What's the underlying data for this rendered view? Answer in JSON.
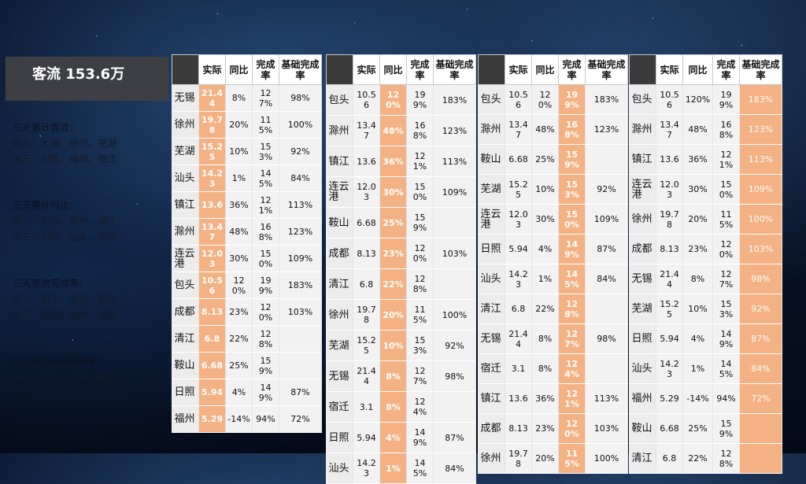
{
  "title": "客流 153.6万",
  "side": [
    {
      "heading": "三天累计客流：",
      "lines": [
        "前三：无锡、徐州、芜湖",
        "末三：日照、福州、宿迁"
      ]
    },
    {
      "heading": "三天累计同比：",
      "lines": [
        "前三：包头、滁州、镇江",
        "末三：日照、汕头、福州"
      ]
    },
    {
      "heading": "三天客流完成率：",
      "lines": [
        "前三：包头、滁州、鞍山",
        "末三：成都、徐州、福州"
      ]
    },
    {
      "heading": "三天客流基础完成率：",
      "lines": [
        "前三：包头、滁州、镇江"
      ]
    }
  ],
  "headers": [
    "实际",
    "同比",
    "完成率",
    "基础完成率"
  ],
  "tables": [
    {
      "rows": [
        [
          "无锡",
          "21.44",
          "8%",
          "127%",
          "98%"
        ],
        [
          "徐州",
          "19.78",
          "20%",
          "115%",
          "100%"
        ],
        [
          "芜湖",
          "15.25",
          "10%",
          "153%",
          "92%"
        ],
        [
          "汕头",
          "14.23",
          "1%",
          "145%",
          "84%"
        ],
        [
          "镇江",
          "13.6",
          "36%",
          "121%",
          "113%"
        ],
        [
          "滁州",
          "13.47",
          "48%",
          "168%",
          "123%"
        ],
        [
          "连云港",
          "12.03",
          "30%",
          "150%",
          "109%"
        ],
        [
          "包头",
          "10.56",
          "120%",
          "199%",
          "183%"
        ],
        [
          "成都",
          "8.13",
          "23%",
          "120%",
          "103%"
        ],
        [
          "清江",
          "6.8",
          "22%",
          "128%",
          ""
        ],
        [
          "鞍山",
          "6.68",
          "25%",
          "159%",
          ""
        ],
        [
          "日照",
          "5.94",
          "4%",
          "149%",
          "87%"
        ],
        [
          "福州",
          "5.29",
          "-14%",
          "94%",
          "72%"
        ]
      ]
    },
    {
      "rows": [
        [
          "包头",
          "10.56",
          "120%",
          "199%",
          "183%"
        ],
        [
          "滁州",
          "13.47",
          "48%",
          "168%",
          "123%"
        ],
        [
          "镇江",
          "13.6",
          "36%",
          "121%",
          "113%"
        ],
        [
          "连云港",
          "12.03",
          "30%",
          "150%",
          "109%"
        ],
        [
          "鞍山",
          "6.68",
          "25%",
          "159%",
          ""
        ],
        [
          "成都",
          "8.13",
          "23%",
          "120%",
          "103%"
        ],
        [
          "清江",
          "6.8",
          "22%",
          "128%",
          ""
        ],
        [
          "徐州",
          "19.78",
          "20%",
          "115%",
          "100%"
        ],
        [
          "芜湖",
          "15.25",
          "10%",
          "153%",
          "92%"
        ],
        [
          "无锡",
          "21.44",
          "8%",
          "127%",
          "98%"
        ],
        [
          "宿迁",
          "3.1",
          "8%",
          "124%",
          ""
        ],
        [
          "日照",
          "5.94",
          "4%",
          "149%",
          "87%"
        ],
        [
          "汕头",
          "14.23",
          "1%",
          "145%",
          "84%"
        ]
      ]
    },
    {
      "rows": [
        [
          "包头",
          "10.56",
          "120%",
          "199%",
          "183%"
        ],
        [
          "滁州",
          "13.47",
          "48%",
          "168%",
          "123%"
        ],
        [
          "鞍山",
          "6.68",
          "25%",
          "159%",
          ""
        ],
        [
          "芜湖",
          "15.25",
          "10%",
          "153%",
          "92%"
        ],
        [
          "连云港",
          "12.03",
          "30%",
          "150%",
          "109%"
        ],
        [
          "日照",
          "5.94",
          "4%",
          "149%",
          "87%"
        ],
        [
          "汕头",
          "14.23",
          "1%",
          "145%",
          "84%"
        ],
        [
          "清江",
          "6.8",
          "22%",
          "128%",
          ""
        ],
        [
          "无锡",
          "21.44",
          "8%",
          "127%",
          "98%"
        ],
        [
          "宿迁",
          "3.1",
          "8%",
          "124%",
          ""
        ],
        [
          "镇江",
          "13.6",
          "36%",
          "121%",
          "113%"
        ],
        [
          "成都",
          "8.13",
          "23%",
          "120%",
          "103%"
        ],
        [
          "徐州",
          "19.78",
          "20%",
          "115%",
          "100%"
        ]
      ]
    },
    {
      "rows": [
        [
          "包头",
          "10.56",
          "120%",
          "199%",
          "183%"
        ],
        [
          "滁州",
          "13.47",
          "48%",
          "168%",
          "123%"
        ],
        [
          "镇江",
          "13.6",
          "36%",
          "121%",
          "113%"
        ],
        [
          "连云港",
          "12.03",
          "30%",
          "150%",
          "109%"
        ],
        [
          "徐州",
          "19.78",
          "20%",
          "115%",
          "100%"
        ],
        [
          "成都",
          "8.13",
          "23%",
          "120%",
          "103%"
        ],
        [
          "无锡",
          "21.44",
          "8%",
          "127%",
          "98%"
        ],
        [
          "芜湖",
          "15.25",
          "10%",
          "153%",
          "92%"
        ],
        [
          "日照",
          "5.94",
          "4%",
          "149%",
          "87%"
        ],
        [
          "汕头",
          "14.23",
          "1%",
          "145%",
          "84%"
        ],
        [
          "福州",
          "5.29",
          "-14%",
          "94%",
          "72%"
        ],
        [
          "鞍山",
          "6.68",
          "25%",
          "159%",
          ""
        ],
        [
          "清江",
          "6.8",
          "22%",
          "128%",
          ""
        ]
      ]
    }
  ]
}
